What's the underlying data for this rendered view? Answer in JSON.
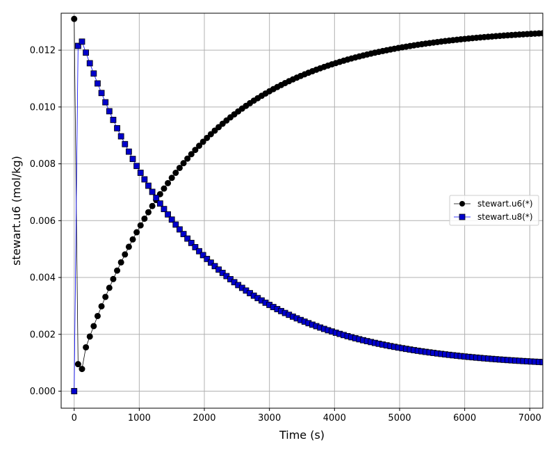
{
  "chart_data": {
    "type": "line",
    "title": "",
    "xlabel": "Time (s)",
    "ylabel": "stewart.u6 (mol/kg)",
    "xlim": [
      -200,
      7200
    ],
    "ylim": [
      -0.0006,
      0.0133
    ],
    "xticks": [
      0,
      1000,
      2000,
      3000,
      4000,
      5000,
      6000,
      7000
    ],
    "xtick_labels": [
      "0",
      "1000",
      "2000",
      "3000",
      "4000",
      "5000",
      "6000",
      "7000"
    ],
    "yticks": [
      0,
      0.002,
      0.004,
      0.006,
      0.008,
      0.01,
      0.012
    ],
    "ytick_labels": [
      "0.000",
      "0.002",
      "0.004",
      "0.006",
      "0.008",
      "0.010",
      "0.012"
    ],
    "grid": true,
    "legend_position": "center-right",
    "sample_step_s": 60,
    "series": [
      {
        "name": "stewart.u6(*)",
        "marker": "circle",
        "color": "#000000",
        "line_color": "#000000",
        "initial_points": [
          [
            0,
            0.0131
          ],
          [
            60,
            0.00095
          ],
          [
            120,
            0.00078
          ]
        ],
        "a": 0.0128,
        "b": 0.01165,
        "tau": 1750,
        "t0": 120
      },
      {
        "name": "stewart.u8(*)",
        "marker": "square",
        "color": "#0000cc",
        "line_color": "#0000ff",
        "initial_points": [
          [
            0,
            0.0
          ],
          [
            60,
            0.01215
          ],
          [
            120,
            0.0123
          ]
        ],
        "c": 0.01148,
        "d": 0.00082,
        "tau": 1750,
        "t0": 120
      }
    ]
  }
}
